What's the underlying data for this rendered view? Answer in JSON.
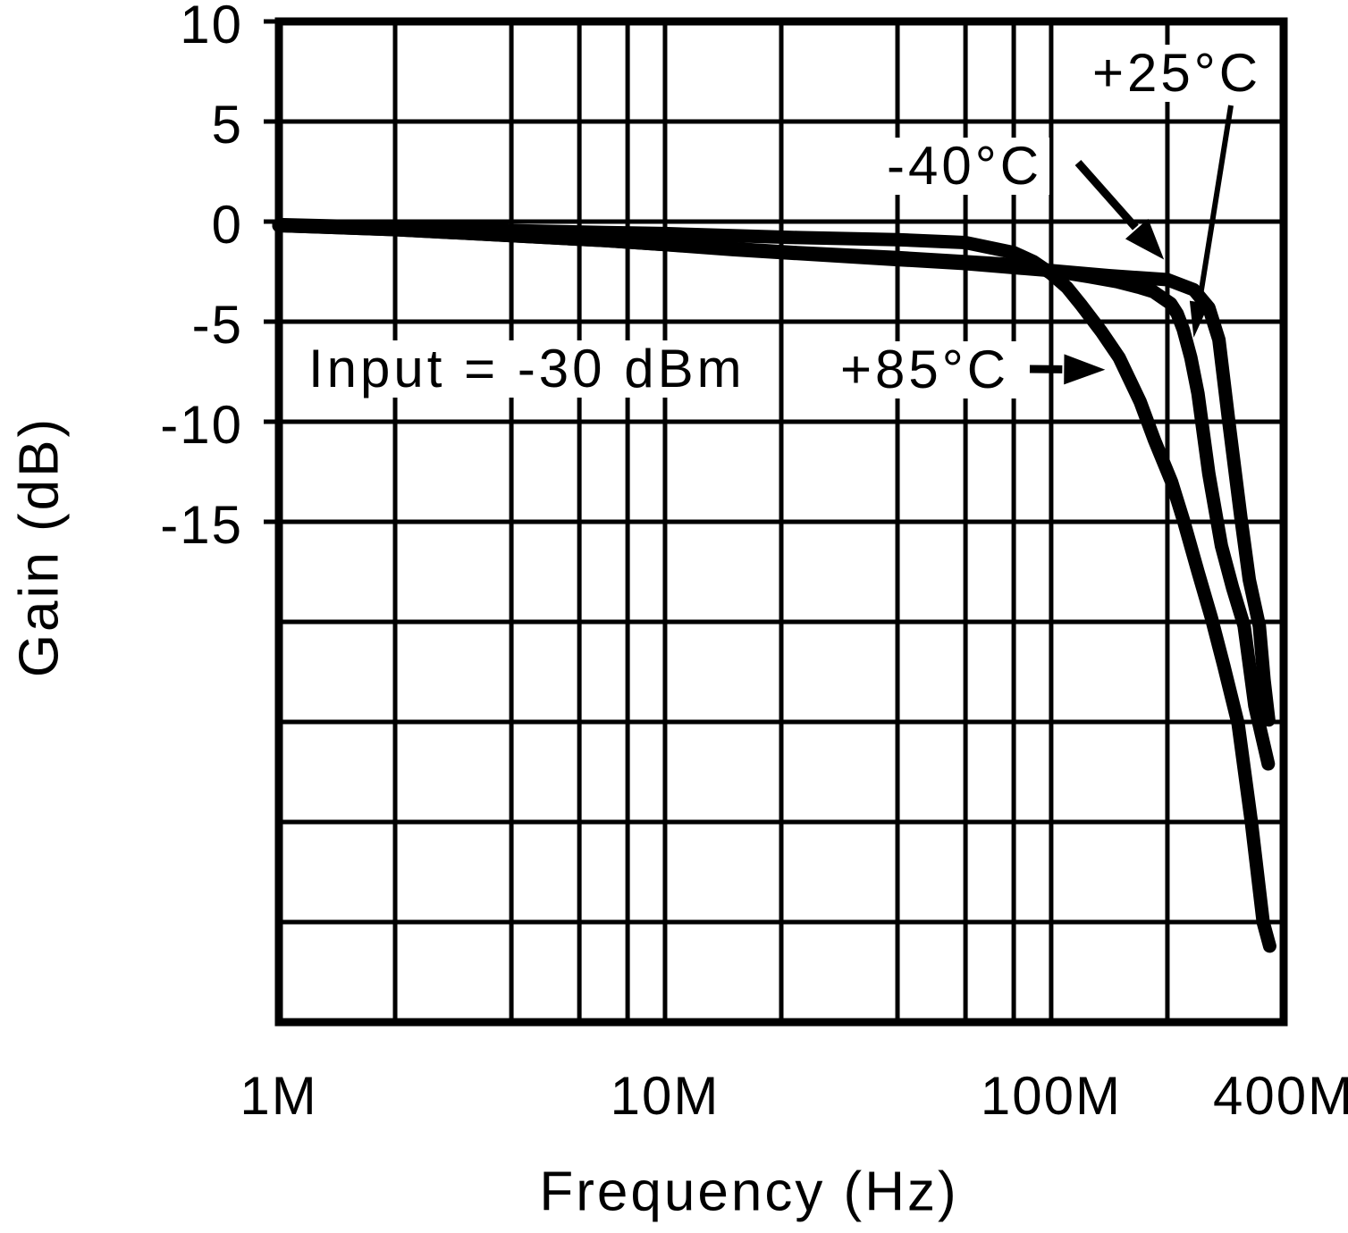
{
  "chart_data": {
    "type": "line",
    "title": "",
    "xlabel": "Frequency (Hz)",
    "ylabel": "Gain (dB)",
    "x_scale": "log",
    "x_unit": "MHz",
    "x_range": [
      1,
      400
    ],
    "y_range": [
      -40,
      10
    ],
    "grid": true,
    "legend_position": "none",
    "y_gridline_step_db": 5,
    "y_tick_labels": [
      {
        "value": 10,
        "label": "10"
      },
      {
        "value": 5,
        "label": "5"
      },
      {
        "value": 0,
        "label": "0"
      },
      {
        "value": -5,
        "label": "-5"
      },
      {
        "value": -10,
        "label": "-10"
      },
      {
        "value": -15,
        "label": "-15"
      }
    ],
    "x_tick_labels": [
      {
        "value": 1,
        "label": "1M"
      },
      {
        "value": 10,
        "label": "10M"
      },
      {
        "value": 100,
        "label": "100M"
      },
      {
        "value": 400,
        "label": "400M"
      }
    ],
    "x_gridlines": [
      1,
      2,
      4,
      6,
      8,
      10,
      20,
      40,
      60,
      80,
      100,
      200,
      400
    ],
    "condition_annotation": "Input = -30 dBm",
    "series": [
      {
        "name": "+25°C",
        "pointer_target": {
          "freq": 234,
          "gain": -5.8
        },
        "points": [
          [
            1,
            -0.2
          ],
          [
            2,
            -0.4
          ],
          [
            4,
            -0.7
          ],
          [
            7,
            -0.95
          ],
          [
            10,
            -1.15
          ],
          [
            15,
            -1.35
          ],
          [
            22,
            -1.55
          ],
          [
            40,
            -1.8
          ],
          [
            60,
            -2.0
          ],
          [
            80,
            -2.15
          ],
          [
            100,
            -2.45
          ],
          [
            125,
            -2.75
          ],
          [
            148,
            -3.0
          ],
          [
            170,
            -3.3
          ],
          [
            184,
            -3.5
          ],
          [
            204,
            -4.1
          ],
          [
            212,
            -4.6
          ],
          [
            220,
            -5.4
          ],
          [
            230,
            -6.8
          ],
          [
            240,
            -8.6
          ],
          [
            256,
            -12.6
          ],
          [
            276,
            -16.2
          ],
          [
            295,
            -18.3
          ],
          [
            316,
            -20.2
          ],
          [
            337,
            -24.2
          ],
          [
            365,
            -27.1
          ]
        ]
      },
      {
        "name": "-40°C",
        "pointer_target": {
          "freq": 196,
          "gain": -1.9
        },
        "points": [
          [
            1,
            -0.2
          ],
          [
            2,
            -0.4
          ],
          [
            4,
            -0.7
          ],
          [
            7,
            -0.95
          ],
          [
            10,
            -1.15
          ],
          [
            15,
            -1.4
          ],
          [
            22,
            -1.6
          ],
          [
            40,
            -1.9
          ],
          [
            60,
            -2.1
          ],
          [
            80,
            -2.3
          ],
          [
            100,
            -2.45
          ],
          [
            141,
            -2.7
          ],
          [
            200,
            -2.9
          ],
          [
            234,
            -3.4
          ],
          [
            256,
            -4.3
          ],
          [
            272,
            -5.9
          ],
          [
            288,
            -9.9
          ],
          [
            310,
            -14.8
          ],
          [
            326,
            -17.9
          ],
          [
            346,
            -20.2
          ],
          [
            356,
            -22.9
          ],
          [
            366,
            -24.9
          ]
        ]
      },
      {
        "name": "+85°C",
        "pointer_target": {
          "freq": 138,
          "gain": -7.4
        },
        "points": [
          [
            1,
            -0.15
          ],
          [
            2,
            -0.3
          ],
          [
            4,
            -0.45
          ],
          [
            7,
            -0.55
          ],
          [
            10,
            -0.6
          ],
          [
            15,
            -0.7
          ],
          [
            22,
            -0.8
          ],
          [
            40,
            -0.9
          ],
          [
            60,
            -1.05
          ],
          [
            80,
            -1.55
          ],
          [
            90,
            -2.0
          ],
          [
            100,
            -2.6
          ],
          [
            110,
            -3.3
          ],
          [
            120,
            -4.2
          ],
          [
            135,
            -5.5
          ],
          [
            150,
            -6.8
          ],
          [
            170,
            -9.0
          ],
          [
            185,
            -10.9
          ],
          [
            205,
            -13.0
          ],
          [
            220,
            -14.9
          ],
          [
            240,
            -17.5
          ],
          [
            260,
            -19.8
          ],
          [
            280,
            -22.2
          ],
          [
            305,
            -25.1
          ],
          [
            330,
            -30.0
          ],
          [
            354,
            -35.0
          ],
          [
            368,
            -36.2
          ]
        ]
      }
    ]
  }
}
